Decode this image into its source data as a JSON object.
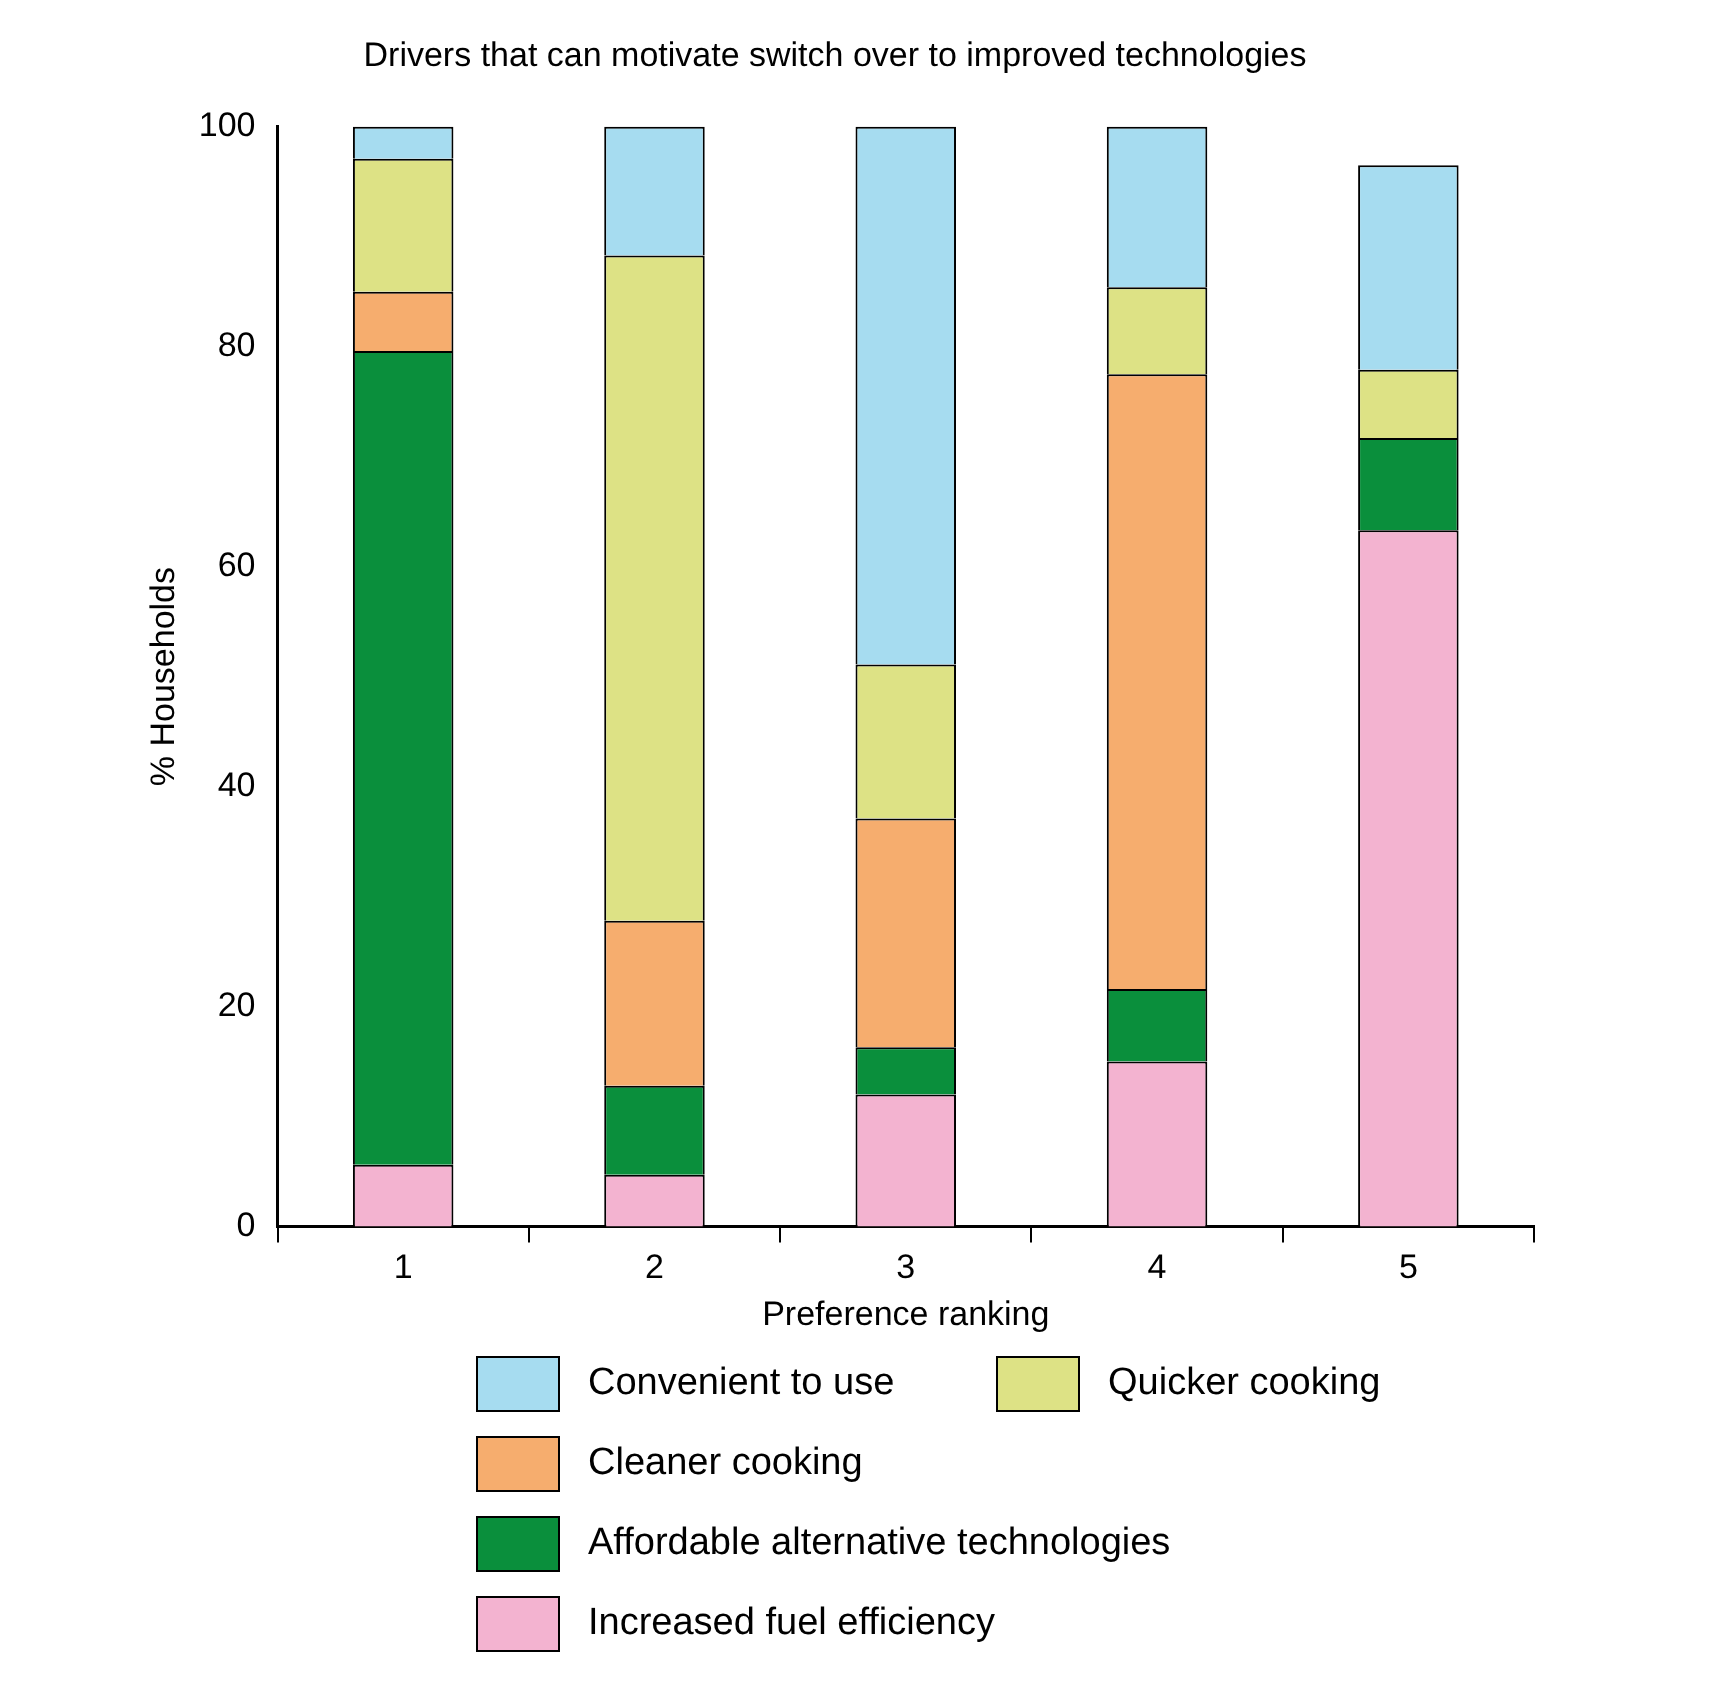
{
  "chart_data": {
    "type": "bar",
    "title": "Drivers that can motivate switch over to improved technologies",
    "xlabel": "Preference ranking",
    "ylabel": "% Households",
    "categories": [
      "1",
      "2",
      "3",
      "4",
      "5"
    ],
    "stacked": true,
    "ylim": [
      0,
      100
    ],
    "yticks": [
      0,
      20,
      40,
      60,
      80,
      100
    ],
    "grid": false,
    "legend": "bottom",
    "series": [
      {
        "name": "Increased fuel efficiency",
        "color": "#f3b3d0",
        "values": [
          5.6,
          4.7,
          12.0,
          15.0,
          63.3
        ]
      },
      {
        "name": "Affordable alternative technologies",
        "color": "#0a8f3c",
        "values": [
          74.0,
          8.1,
          4.3,
          6.6,
          8.4
        ]
      },
      {
        "name": "Cleaner cooking",
        "color": "#f6ad6e",
        "values": [
          5.4,
          15.0,
          20.8,
          55.9,
          0
        ]
      },
      {
        "name": "Quicker cooking",
        "color": "#dde285",
        "values": [
          12.1,
          60.5,
          14.0,
          7.9,
          6.2
        ]
      },
      {
        "name": "Convenient to use",
        "color": "#a6dcf0",
        "values": [
          2.9,
          11.7,
          48.9,
          14.6,
          18.6
        ]
      }
    ]
  }
}
